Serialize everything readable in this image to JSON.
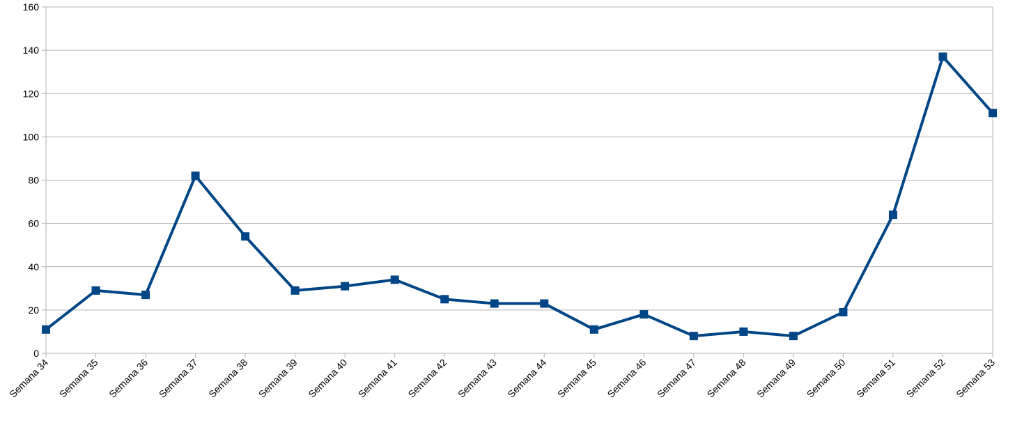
{
  "chart_data": {
    "type": "line",
    "title": "",
    "xlabel": "",
    "ylabel": "",
    "categories": [
      "Semana 34",
      "Semana 35",
      "Semana 36",
      "Semana 37",
      "Semana 38",
      "Semana 39",
      "Semana 40",
      "Semana 41",
      "Semana 42",
      "Semana 43",
      "Semana 44",
      "Semana 45",
      "Semana 46",
      "Semana 47",
      "Semana 48",
      "Semana 49",
      "Semana 50",
      "Semana 51",
      "Semana 52",
      "Semana 53"
    ],
    "series": [
      {
        "values": [
          11,
          29,
          27,
          82,
          54,
          29,
          31,
          34,
          25,
          23,
          23,
          11,
          18,
          8,
          10,
          8,
          19,
          64,
          137,
          111
        ],
        "color": "#004586",
        "marker": "square"
      }
    ],
    "ylim": [
      0,
      160
    ],
    "yticks": [
      0,
      20,
      40,
      60,
      80,
      100,
      120,
      140,
      160
    ],
    "grid": "horizontal",
    "gridColor": "#b3b3b3",
    "legend": "none"
  }
}
